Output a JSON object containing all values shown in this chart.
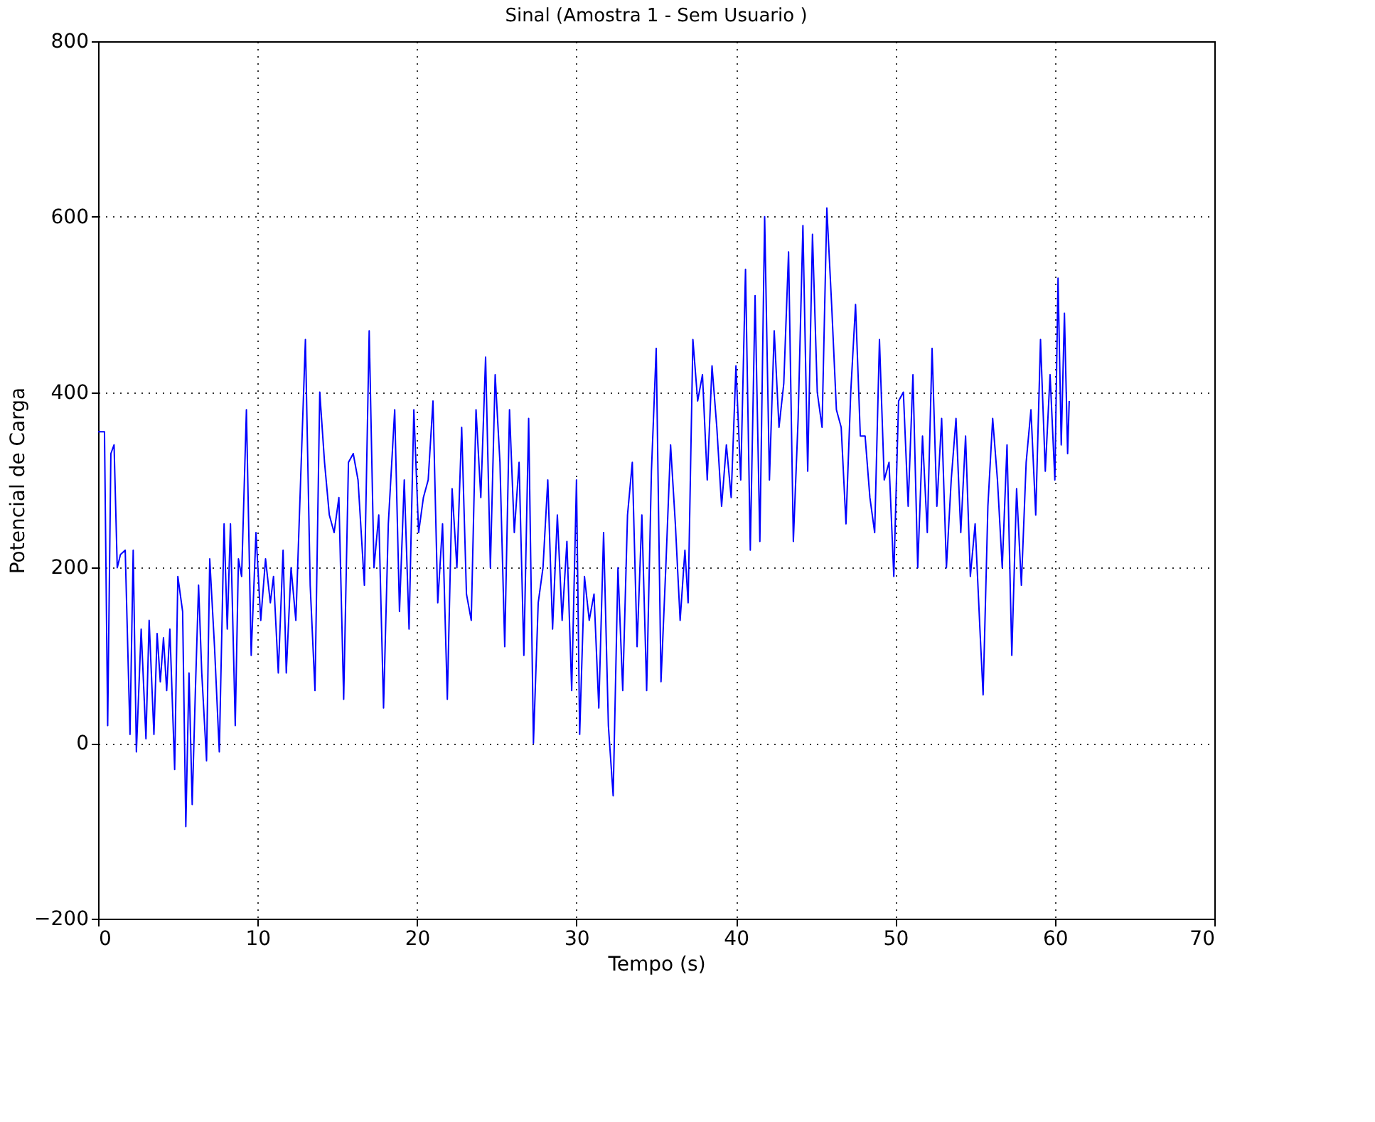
{
  "chart_data": {
    "type": "line",
    "title": "Sinal  (Amostra 1 -  Sem Usuario )",
    "xlabel": "Tempo (s)",
    "ylabel": "Potencial de Carga",
    "xlim": [
      0,
      70
    ],
    "xticks": [
      0,
      10,
      20,
      30,
      40,
      50,
      60,
      70
    ],
    "ylim": [
      -200,
      800
    ],
    "yticks": [
      -200,
      0,
      200,
      400,
      600,
      800
    ],
    "grid": true,
    "series": [
      {
        "color": "#0000ff",
        "x": [
          0,
          0.4,
          0.6,
          0.8,
          1.0,
          1.2,
          1.4,
          1.7,
          2.0,
          2.2,
          2.4,
          2.7,
          3.0,
          3.2,
          3.5,
          3.7,
          3.9,
          4.1,
          4.3,
          4.5,
          4.8,
          5.0,
          5.3,
          5.5,
          5.7,
          5.9,
          6.1,
          6.3,
          6.5,
          6.8,
          7.0,
          7.3,
          7.6,
          7.9,
          8.1,
          8.3,
          8.6,
          8.8,
          9.0,
          9.3,
          9.6,
          9.9,
          10.2,
          10.5,
          10.8,
          11.0,
          11.3,
          11.6,
          11.8,
          12.1,
          12.4,
          12.7,
          13.0,
          13.3,
          13.6,
          13.9,
          14.2,
          14.5,
          14.8,
          15.1,
          15.4,
          15.7,
          16.0,
          16.3,
          16.7,
          17.0,
          17.3,
          17.6,
          17.9,
          18.2,
          18.6,
          18.9,
          19.2,
          19.5,
          19.8,
          20.1,
          20.4,
          20.7,
          21.0,
          21.3,
          21.6,
          21.9,
          22.2,
          22.5,
          22.8,
          23.1,
          23.4,
          23.7,
          24.0,
          24.3,
          24.6,
          24.9,
          25.2,
          25.5,
          25.8,
          26.1,
          26.4,
          26.7,
          27.0,
          27.3,
          27.6,
          27.9,
          28.2,
          28.5,
          28.8,
          29.1,
          29.4,
          29.7,
          30.0,
          30.2,
          30.5,
          30.8,
          31.1,
          31.4,
          31.7,
          32.0,
          32.3,
          32.6,
          32.9,
          33.2,
          33.5,
          33.8,
          34.1,
          34.4,
          34.7,
          35.0,
          35.3,
          35.6,
          35.9,
          36.2,
          36.5,
          36.8,
          37.0,
          37.3,
          37.6,
          37.9,
          38.2,
          38.5,
          38.8,
          39.1,
          39.4,
          39.7,
          40.0,
          40.3,
          40.6,
          40.9,
          41.2,
          41.5,
          41.8,
          42.1,
          42.4,
          42.7,
          43.0,
          43.3,
          43.6,
          43.9,
          44.2,
          44.5,
          44.8,
          45.1,
          45.4,
          45.7,
          46.0,
          46.3,
          46.6,
          46.9,
          47.2,
          47.5,
          47.8,
          48.1,
          48.4,
          48.7,
          49.0,
          49.3,
          49.6,
          49.9,
          50.2,
          50.5,
          50.8,
          51.1,
          51.4,
          51.7,
          52.0,
          52.3,
          52.6,
          52.9,
          53.2,
          53.5,
          53.8,
          54.1,
          54.4,
          54.7,
          55.0,
          55.3,
          55.5,
          55.8,
          56.1,
          56.4,
          56.7,
          57.0,
          57.3,
          57.6,
          57.9,
          58.2,
          58.5,
          58.8,
          59.1,
          59.4,
          59.7,
          60.0,
          60.2,
          60.4,
          60.6,
          60.8,
          60.9
        ],
        "values": [
          355,
          355,
          20,
          330,
          340,
          200,
          215,
          220,
          10,
          220,
          -10,
          130,
          5,
          140,
          10,
          125,
          70,
          120,
          60,
          130,
          -30,
          190,
          150,
          -95,
          80,
          -70,
          60,
          180,
          80,
          -20,
          210,
          110,
          -10,
          250,
          130,
          250,
          20,
          210,
          190,
          380,
          100,
          240,
          140,
          210,
          160,
          190,
          80,
          220,
          80,
          200,
          140,
          300,
          460,
          180,
          60,
          400,
          320,
          260,
          240,
          280,
          50,
          320,
          330,
          300,
          180,
          470,
          200,
          260,
          40,
          250,
          380,
          150,
          300,
          130,
          380,
          240,
          280,
          300,
          390,
          160,
          250,
          50,
          290,
          200,
          360,
          170,
          140,
          380,
          280,
          440,
          200,
          420,
          320,
          110,
          380,
          240,
          320,
          100,
          370,
          0,
          160,
          200,
          300,
          130,
          260,
          140,
          230,
          60,
          300,
          10,
          190,
          140,
          170,
          40,
          240,
          20,
          -60,
          200,
          60,
          260,
          320,
          110,
          260,
          60,
          310,
          450,
          70,
          200,
          340,
          250,
          140,
          220,
          160,
          460,
          390,
          420,
          300,
          430,
          360,
          270,
          340,
          280,
          430,
          300,
          540,
          220,
          510,
          230,
          600,
          300,
          470,
          360,
          410,
          560,
          230,
          370,
          590,
          310,
          580,
          400,
          360,
          610,
          500,
          380,
          360,
          250,
          400,
          500,
          350,
          350,
          280,
          240,
          460,
          300,
          320,
          190,
          390,
          400,
          270,
          420,
          200,
          350,
          240,
          450,
          270,
          370,
          200,
          300,
          370,
          240,
          350,
          190,
          250,
          130,
          55,
          270,
          370,
          300,
          200,
          340,
          100,
          290,
          180,
          320,
          380,
          260,
          460,
          310,
          420,
          300,
          530,
          340,
          490,
          330,
          390
        ]
      }
    ]
  }
}
